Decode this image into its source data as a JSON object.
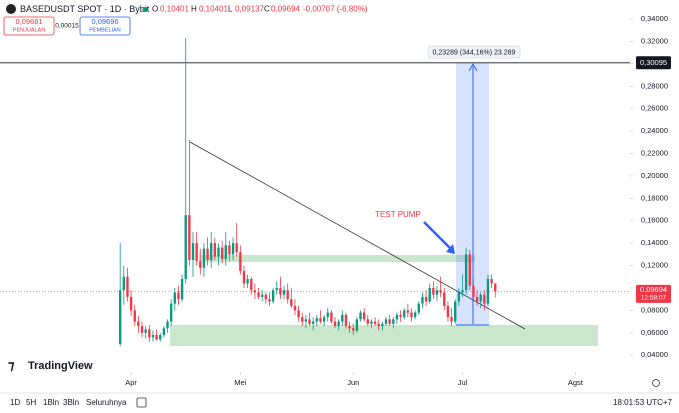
{
  "header": {
    "symbol": "BASEDUSDT SPOT · 1D · Bybit",
    "o_label": "O",
    "o": "0,10401",
    "h_label": "H",
    "h": "0,10401",
    "l_label": "L",
    "l": "0,09137",
    "c_label": "C",
    "c": "0,09694",
    "change": "-0,00707 (-6,80%)",
    "sell_price": "0,09681",
    "sell_label": "PENJUALAN",
    "spread": "0,00015",
    "buy_price": "0,09696",
    "buy_label": "PEMBELIAN"
  },
  "chart_data": {
    "type": "candlestick",
    "up_color": "#089981",
    "down_color": "#f23645",
    "grid": false,
    "xlim": [
      -33,
      140
    ],
    "ylim": [
      0.025,
      0.357
    ],
    "xticks": [
      {
        "value": 3,
        "label": "Apr"
      },
      {
        "value": 33,
        "label": "Mei"
      },
      {
        "value": 64,
        "label": "Jun"
      },
      {
        "value": 94,
        "label": "Jul"
      },
      {
        "value": 125,
        "label": "Agst"
      }
    ],
    "yticks": [
      {
        "value": 0.34,
        "label": "0,34000"
      },
      {
        "value": 0.32,
        "label": "0,32000"
      },
      {
        "value": 0.3,
        "label": "0,30000"
      },
      {
        "value": 0.28,
        "label": "0,28000"
      },
      {
        "value": 0.26,
        "label": "0,26000"
      },
      {
        "value": 0.24,
        "label": "0,24000"
      },
      {
        "value": 0.22,
        "label": "0,22000"
      },
      {
        "value": 0.2,
        "label": "0,20000"
      },
      {
        "value": 0.18,
        "label": "0,18000"
      },
      {
        "value": 0.16,
        "label": "0,16000"
      },
      {
        "value": 0.14,
        "label": "0,14000"
      },
      {
        "value": 0.12,
        "label": "0,12000"
      },
      {
        "value": 0.1,
        "label": "0,10000"
      },
      {
        "value": 0.08,
        "label": "0,08000"
      },
      {
        "value": 0.06,
        "label": "0,06000"
      },
      {
        "value": 0.04,
        "label": "0,04000"
      }
    ],
    "open": [
      0.05,
      0.098,
      0.11,
      0.092,
      0.08,
      0.07,
      0.066,
      0.06,
      0.063,
      0.056,
      0.058,
      0.054,
      0.058,
      0.064,
      0.07,
      0.086,
      0.096,
      0.09,
      0.108,
      0.165,
      0.125,
      0.14,
      0.124,
      0.118,
      0.135,
      0.125,
      0.14,
      0.128,
      0.136,
      0.126,
      0.138,
      0.13,
      0.14,
      0.132,
      0.115,
      0.104,
      0.108,
      0.098,
      0.096,
      0.092,
      0.094,
      0.09,
      0.088,
      0.098,
      0.1,
      0.094,
      0.098,
      0.09,
      0.084,
      0.08,
      0.074,
      0.07,
      0.072,
      0.068,
      0.07,
      0.073,
      0.07,
      0.074,
      0.078,
      0.07,
      0.066,
      0.07,
      0.076,
      0.066,
      0.064,
      0.062,
      0.072,
      0.078,
      0.072,
      0.068,
      0.07,
      0.068,
      0.066,
      0.068,
      0.072,
      0.068,
      0.072,
      0.076,
      0.074,
      0.08,
      0.078,
      0.074,
      0.078,
      0.086,
      0.092,
      0.088,
      0.1,
      0.094,
      0.098,
      0.096,
      0.084,
      0.074,
      0.07,
      0.088,
      0.096,
      0.098,
      0.13,
      0.102,
      0.092,
      0.088,
      0.094,
      0.086,
      0.108,
      0.10401
    ],
    "high": [
      0.14,
      0.12,
      0.118,
      0.098,
      0.085,
      0.075,
      0.07,
      0.066,
      0.067,
      0.062,
      0.063,
      0.06,
      0.066,
      0.072,
      0.09,
      0.1,
      0.102,
      0.112,
      0.323,
      0.232,
      0.15,
      0.15,
      0.135,
      0.14,
      0.145,
      0.15,
      0.145,
      0.14,
      0.142,
      0.15,
      0.142,
      0.145,
      0.158,
      0.138,
      0.12,
      0.112,
      0.11,
      0.104,
      0.1,
      0.098,
      0.096,
      0.096,
      0.1,
      0.106,
      0.11,
      0.102,
      0.104,
      0.1,
      0.09,
      0.084,
      0.078,
      0.076,
      0.078,
      0.074,
      0.076,
      0.08,
      0.076,
      0.082,
      0.08,
      0.074,
      0.072,
      0.08,
      0.078,
      0.07,
      0.068,
      0.074,
      0.08,
      0.082,
      0.076,
      0.072,
      0.074,
      0.072,
      0.07,
      0.074,
      0.076,
      0.074,
      0.078,
      0.08,
      0.082,
      0.086,
      0.082,
      0.08,
      0.088,
      0.096,
      0.098,
      0.104,
      0.106,
      0.102,
      0.11,
      0.1,
      0.088,
      0.082,
      0.09,
      0.1,
      0.112,
      0.136,
      0.134,
      0.108,
      0.098,
      0.096,
      0.098,
      0.112,
      0.112,
      0.10401
    ],
    "low": [
      0.048,
      0.085,
      0.088,
      0.075,
      0.066,
      0.06,
      0.056,
      0.055,
      0.052,
      0.052,
      0.053,
      0.052,
      0.056,
      0.06,
      0.066,
      0.08,
      0.085,
      0.088,
      0.104,
      0.12,
      0.11,
      0.12,
      0.112,
      0.11,
      0.12,
      0.118,
      0.125,
      0.12,
      0.122,
      0.12,
      0.124,
      0.125,
      0.128,
      0.112,
      0.1,
      0.1,
      0.094,
      0.09,
      0.09,
      0.088,
      0.086,
      0.084,
      0.086,
      0.094,
      0.09,
      0.09,
      0.086,
      0.082,
      0.076,
      0.07,
      0.066,
      0.064,
      0.066,
      0.062,
      0.066,
      0.068,
      0.066,
      0.07,
      0.068,
      0.064,
      0.062,
      0.066,
      0.064,
      0.06,
      0.058,
      0.06,
      0.07,
      0.07,
      0.066,
      0.064,
      0.066,
      0.062,
      0.062,
      0.066,
      0.066,
      0.064,
      0.068,
      0.07,
      0.072,
      0.074,
      0.07,
      0.072,
      0.076,
      0.082,
      0.084,
      0.086,
      0.09,
      0.088,
      0.092,
      0.08,
      0.07,
      0.066,
      0.068,
      0.084,
      0.092,
      0.094,
      0.098,
      0.088,
      0.084,
      0.082,
      0.08,
      0.084,
      0.1,
      0.09137
    ],
    "close": [
      0.098,
      0.11,
      0.092,
      0.08,
      0.07,
      0.066,
      0.06,
      0.063,
      0.056,
      0.058,
      0.054,
      0.058,
      0.064,
      0.07,
      0.086,
      0.096,
      0.09,
      0.108,
      0.165,
      0.125,
      0.14,
      0.124,
      0.118,
      0.135,
      0.125,
      0.14,
      0.128,
      0.136,
      0.126,
      0.138,
      0.13,
      0.14,
      0.132,
      0.115,
      0.104,
      0.108,
      0.098,
      0.096,
      0.092,
      0.094,
      0.09,
      0.088,
      0.098,
      0.1,
      0.094,
      0.098,
      0.09,
      0.084,
      0.08,
      0.074,
      0.07,
      0.072,
      0.068,
      0.07,
      0.073,
      0.07,
      0.074,
      0.078,
      0.07,
      0.066,
      0.07,
      0.076,
      0.066,
      0.064,
      0.062,
      0.072,
      0.078,
      0.072,
      0.068,
      0.07,
      0.068,
      0.066,
      0.068,
      0.072,
      0.068,
      0.072,
      0.076,
      0.074,
      0.08,
      0.078,
      0.074,
      0.078,
      0.086,
      0.092,
      0.088,
      0.1,
      0.094,
      0.098,
      0.096,
      0.084,
      0.074,
      0.07,
      0.088,
      0.096,
      0.098,
      0.13,
      0.102,
      0.092,
      0.088,
      0.094,
      0.086,
      0.108,
      0.10401,
      0.09694
    ],
    "hline": {
      "value": 0.30095,
      "label": "0,30095"
    },
    "last_price": {
      "value": 0.09694,
      "label": "0,09694",
      "countdown": "12:58:07"
    },
    "annotations": {
      "measure": "0,23289 (344,16%) 23.289",
      "note": "TEST PUMP"
    }
  },
  "branding": "TradingView",
  "footer": {
    "ranges": [
      "1D",
      "5H",
      "1Bln",
      "3Bln",
      "Seluruhnya"
    ],
    "clock": "18:01:53 UTC+7"
  }
}
